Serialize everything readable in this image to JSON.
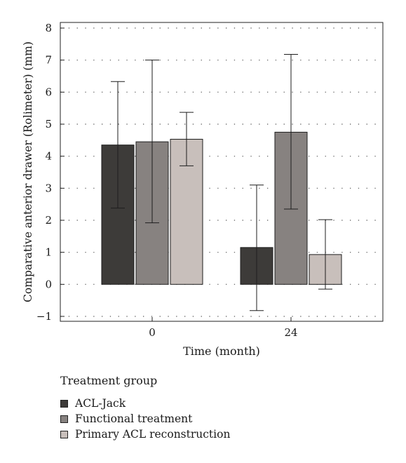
{
  "chart_data": {
    "type": "bar",
    "title": "",
    "xlabel": "Time (month)",
    "ylabel": "Comparative anterior drawer (Rolimeter) (mm)",
    "categories": [
      "0",
      "24"
    ],
    "ylim": [
      -1,
      8
    ],
    "yticks": [
      -1,
      0,
      1,
      2,
      3,
      4,
      5,
      6,
      7,
      8
    ],
    "ytick_labels": [
      "−1",
      "0",
      "1",
      "2",
      "3",
      "4",
      "5",
      "6",
      "7",
      "8"
    ],
    "grid": "horizontal dotted",
    "legend_title": "Treatment group",
    "legend_position": "bottom-left",
    "series": [
      {
        "name": "ACL-Jack",
        "color": "#3d3b39",
        "values": [
          4.35,
          1.15
        ],
        "err_low": [
          2.38,
          -0.82
        ],
        "err_high": [
          6.33,
          3.1
        ]
      },
      {
        "name": "Functional treatment",
        "color": "#878280",
        "values": [
          4.45,
          4.75
        ],
        "err_low": [
          1.92,
          2.35
        ],
        "err_high": [
          7.0,
          7.18
        ]
      },
      {
        "name": "Primary ACL reconstruction",
        "color": "#c8bfbb",
        "values": [
          4.53,
          0.93
        ],
        "err_low": [
          3.7,
          -0.15
        ],
        "err_high": [
          5.37,
          2.02
        ]
      }
    ]
  }
}
